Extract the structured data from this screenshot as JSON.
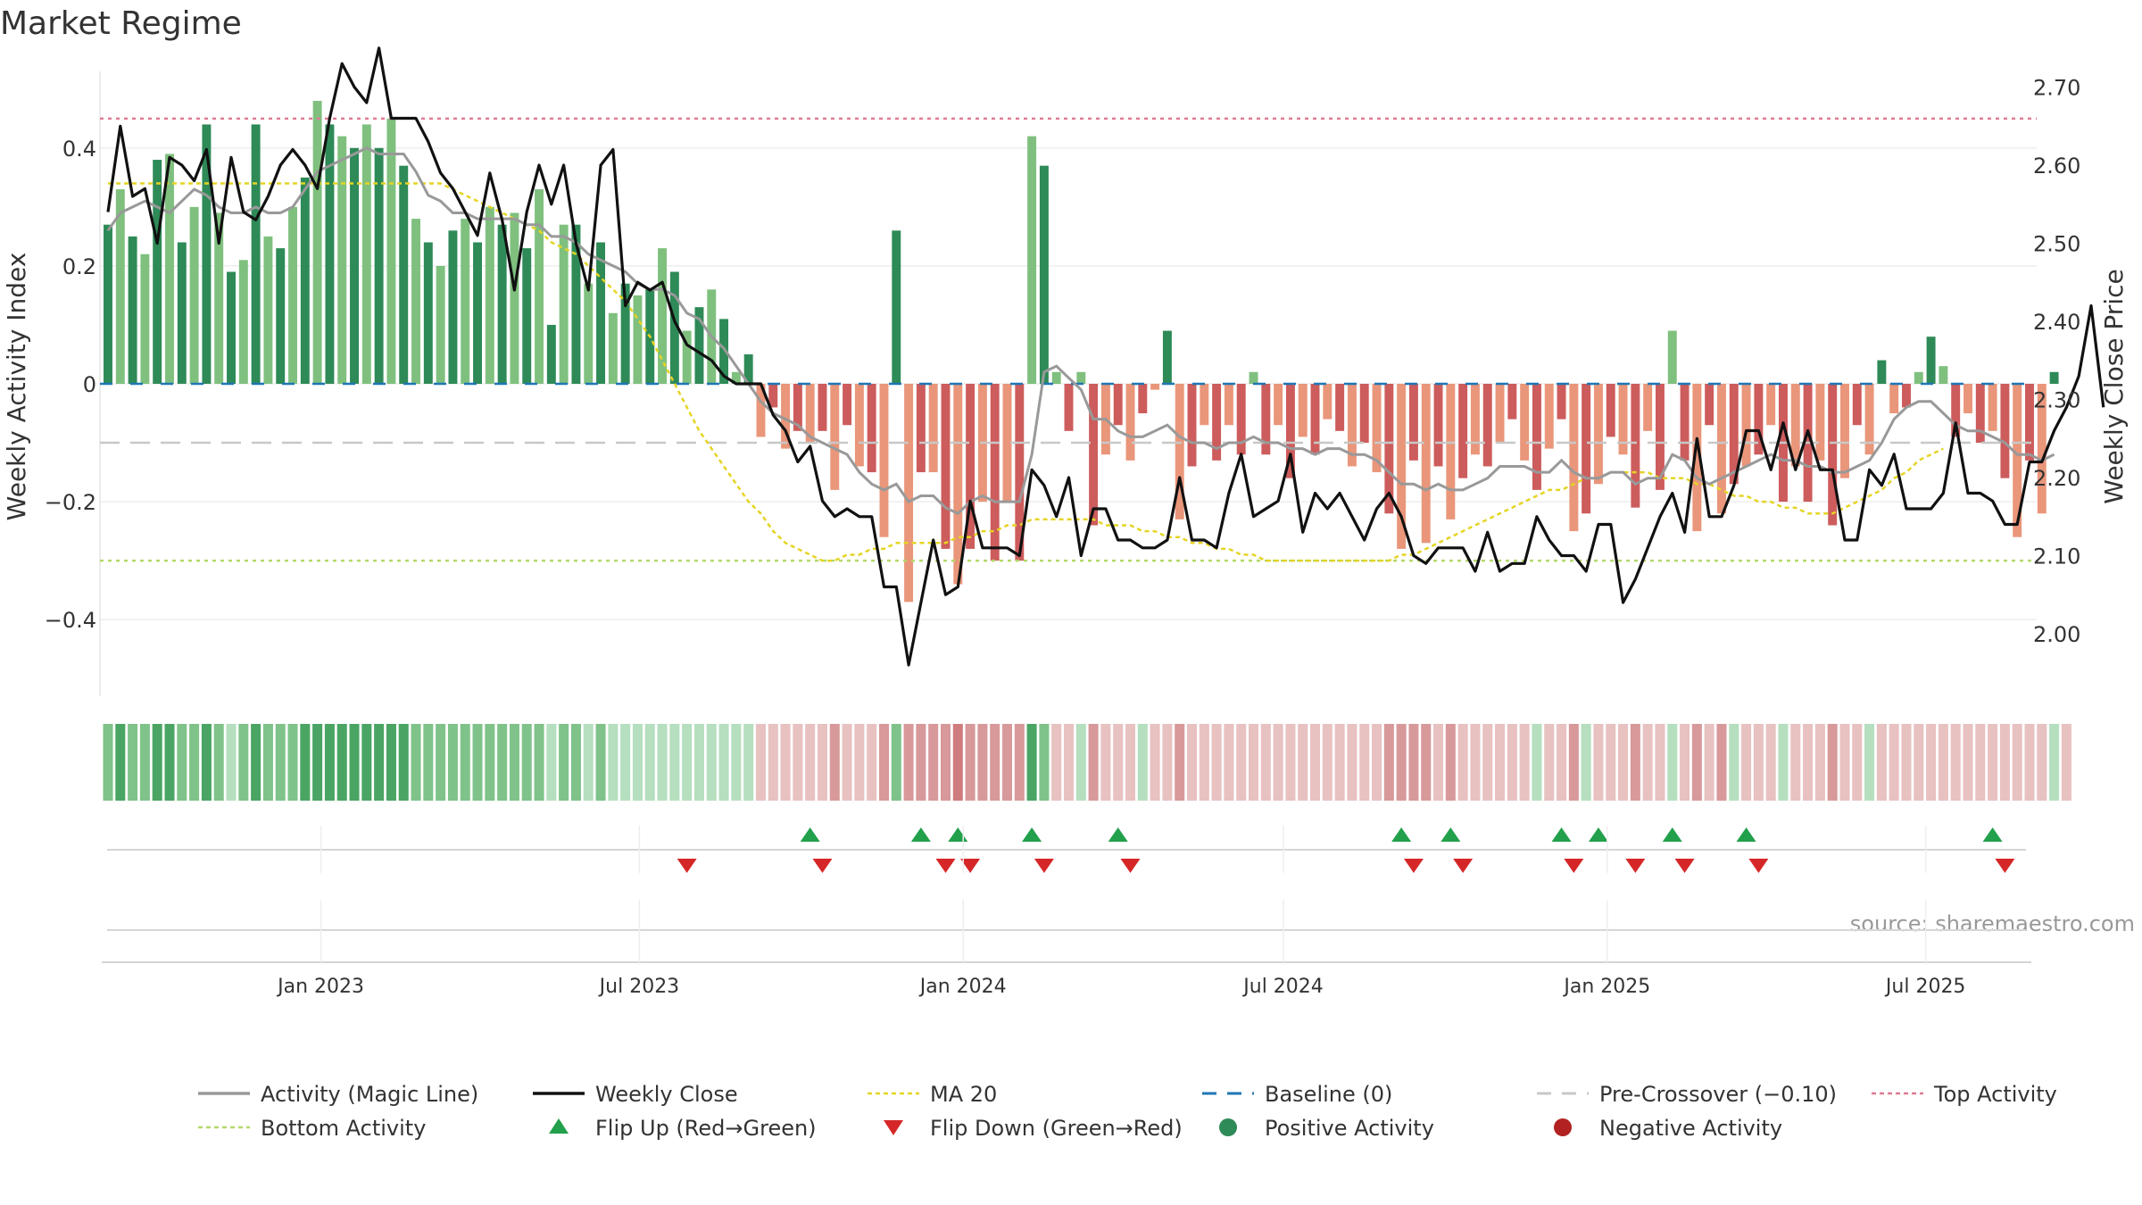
{
  "chart_data": {
    "type": "bar",
    "title": "Market Regime",
    "ylabel_left": "Weekly Activity Index",
    "ylabel_right": "Weekly Close Price",
    "source": "source: sharemaestro.com",
    "left_axis": {
      "ylim": [
        -0.53,
        0.53
      ],
      "ticks": [
        0.4,
        0.2,
        0,
        -0.2,
        -0.4
      ],
      "tick_labels": [
        "0.4",
        "0.2",
        "0",
        "−0.2",
        "−0.4"
      ]
    },
    "right_axis": {
      "ylim": [
        1.92,
        2.72
      ],
      "ticks": [
        2.7,
        2.6,
        2.5,
        2.4,
        2.3,
        2.2,
        2.1,
        2.0
      ],
      "tick_labels": [
        "2.70",
        "2.60",
        "2.50",
        "2.40",
        "2.30",
        "2.20",
        "2.10",
        "2.00"
      ]
    },
    "x_axis": {
      "start": "2022-09-02",
      "weeks": 157,
      "tick_dates": [
        "2023-01-01",
        "2023-07-01",
        "2024-01-01",
        "2024-07-01",
        "2025-01-01",
        "2025-07-01"
      ],
      "tick_labels": [
        "Jan 2023",
        "Jul 2023",
        "Jan 2024",
        "Jul 2024",
        "Jan 2025",
        "Jul 2025"
      ]
    },
    "reference_lines": {
      "baseline": 0,
      "pre_crossover": -0.1,
      "top_activity": 0.45,
      "bottom_activity": -0.3
    },
    "colors": {
      "pos_strong": "#2e8a57",
      "pos_weak": "#7fc07f",
      "neg_strong": "#cd5c5c",
      "neg_weak": "#e9967a",
      "magic": "#999999",
      "close": "#111111",
      "ma20": "#e5d424",
      "baseline": "#1f77b4",
      "pre_cross": "#c8c8c8",
      "top": "#e07b94",
      "bottom": "#b5d86a",
      "flip_up": "#22a04b",
      "flip_down": "#d62728"
    },
    "activity": [
      0.27,
      0.33,
      0.25,
      0.22,
      0.38,
      0.39,
      0.24,
      0.3,
      0.44,
      0.29,
      0.19,
      0.21,
      0.44,
      0.25,
      0.23,
      0.3,
      0.35,
      0.48,
      0.44,
      0.42,
      0.4,
      0.44,
      0.4,
      0.45,
      0.37,
      0.28,
      0.24,
      0.2,
      0.26,
      0.28,
      0.24,
      0.3,
      0.27,
      0.29,
      0.23,
      0.33,
      0.1,
      0.27,
      0.27,
      0.17,
      0.24,
      0.12,
      0.17,
      0.15,
      0.16,
      0.23,
      0.19,
      0.09,
      0.13,
      0.16,
      0.11,
      0.02,
      0.05,
      -0.09,
      -0.04,
      -0.11,
      -0.08,
      -0.1,
      -0.08,
      -0.18,
      -0.07,
      -0.14,
      -0.15,
      -0.26,
      0.26,
      -0.37,
      -0.15,
      -0.15,
      -0.28,
      -0.34,
      -0.28,
      -0.2,
      -0.3,
      -0.2,
      -0.3,
      0.42,
      0.37,
      0.02,
      -0.08,
      0.02,
      -0.24,
      -0.12,
      -0.07,
      -0.13,
      -0.05,
      -0.01,
      0.09,
      -0.23,
      -0.14,
      -0.07,
      -0.13,
      -0.07,
      -0.12,
      0.02,
      -0.12,
      -0.07,
      -0.16,
      -0.09,
      -0.12,
      -0.06,
      -0.08,
      -0.14,
      -0.1,
      -0.15,
      -0.22,
      -0.28,
      -0.13,
      -0.27,
      -0.14,
      -0.23,
      -0.16,
      -0.12,
      -0.14,
      -0.1,
      -0.06,
      -0.13,
      -0.18,
      -0.11,
      -0.06,
      -0.25,
      -0.22,
      -0.17,
      -0.09,
      -0.12,
      -0.21,
      -0.08,
      -0.18,
      0.09,
      -0.13,
      -0.25,
      -0.07,
      -0.22,
      -0.17,
      -0.14,
      -0.12,
      -0.07,
      -0.2,
      -0.14,
      -0.2,
      -0.13,
      -0.24,
      -0.16,
      -0.07,
      -0.12,
      0.04,
      -0.05,
      -0.04,
      0.02,
      0.08,
      0.03,
      -0.09,
      -0.05,
      -0.1,
      -0.08,
      -0.16,
      -0.26,
      -0.13,
      -0.22,
      0.02
    ],
    "magic_line": [
      0.26,
      0.29,
      0.3,
      0.31,
      0.3,
      0.29,
      0.31,
      0.33,
      0.32,
      0.3,
      0.29,
      0.29,
      0.3,
      0.29,
      0.29,
      0.3,
      0.33,
      0.36,
      0.37,
      0.38,
      0.39,
      0.4,
      0.39,
      0.39,
      0.39,
      0.36,
      0.32,
      0.31,
      0.29,
      0.29,
      0.28,
      0.28,
      0.28,
      0.28,
      0.27,
      0.27,
      0.25,
      0.25,
      0.24,
      0.22,
      0.21,
      0.2,
      0.19,
      0.17,
      0.16,
      0.16,
      0.15,
      0.12,
      0.11,
      0.08,
      0.06,
      0.03,
      0.0,
      -0.03,
      -0.05,
      -0.06,
      -0.07,
      -0.09,
      -0.1,
      -0.11,
      -0.12,
      -0.15,
      -0.17,
      -0.18,
      -0.17,
      -0.2,
      -0.19,
      -0.19,
      -0.21,
      -0.22,
      -0.2,
      -0.19,
      -0.2,
      -0.2,
      -0.2,
      -0.12,
      0.02,
      0.03,
      0.01,
      -0.01,
      -0.06,
      -0.06,
      -0.08,
      -0.09,
      -0.09,
      -0.08,
      -0.07,
      -0.09,
      -0.1,
      -0.1,
      -0.11,
      -0.1,
      -0.1,
      -0.09,
      -0.1,
      -0.1,
      -0.11,
      -0.11,
      -0.12,
      -0.11,
      -0.11,
      -0.12,
      -0.12,
      -0.13,
      -0.15,
      -0.17,
      -0.17,
      -0.18,
      -0.17,
      -0.18,
      -0.18,
      -0.17,
      -0.16,
      -0.14,
      -0.14,
      -0.14,
      -0.15,
      -0.15,
      -0.13,
      -0.15,
      -0.16,
      -0.16,
      -0.15,
      -0.15,
      -0.17,
      -0.16,
      -0.16,
      -0.12,
      -0.13,
      -0.16,
      -0.17,
      -0.16,
      -0.15,
      -0.14,
      -0.13,
      -0.12,
      -0.13,
      -0.13,
      -0.14,
      -0.14,
      -0.15,
      -0.15,
      -0.14,
      -0.13,
      -0.1,
      -0.06,
      -0.04,
      -0.03,
      -0.03,
      -0.05,
      -0.07,
      -0.08,
      -0.08,
      -0.09,
      -0.1,
      -0.12,
      -0.12,
      -0.13,
      -0.12
    ],
    "ma20": [
      0.34,
      0.34,
      0.34,
      0.34,
      0.34,
      0.34,
      0.34,
      0.34,
      0.34,
      0.34,
      0.34,
      0.34,
      0.34,
      0.34,
      0.34,
      0.34,
      0.34,
      0.34,
      0.34,
      0.34,
      0.34,
      0.34,
      0.34,
      0.34,
      0.34,
      0.34,
      0.34,
      0.34,
      0.33,
      0.32,
      0.31,
      0.3,
      0.29,
      0.28,
      0.27,
      0.26,
      0.24,
      0.23,
      0.22,
      0.2,
      0.18,
      0.16,
      0.14,
      0.11,
      0.08,
      0.04,
      0.0,
      -0.04,
      -0.08,
      -0.11,
      -0.14,
      -0.17,
      -0.2,
      -0.22,
      -0.25,
      -0.27,
      -0.28,
      -0.29,
      -0.3,
      -0.3,
      -0.29,
      -0.29,
      -0.28,
      -0.28,
      -0.27,
      -0.27,
      -0.27,
      -0.27,
      -0.27,
      -0.26,
      -0.26,
      -0.25,
      -0.25,
      -0.24,
      -0.24,
      -0.23,
      -0.23,
      -0.23,
      -0.23,
      -0.23,
      -0.23,
      -0.24,
      -0.24,
      -0.24,
      -0.25,
      -0.25,
      -0.26,
      -0.26,
      -0.27,
      -0.27,
      -0.28,
      -0.28,
      -0.29,
      -0.29,
      -0.3,
      -0.3,
      -0.3,
      -0.3,
      -0.3,
      -0.3,
      -0.3,
      -0.3,
      -0.3,
      -0.3,
      -0.3,
      -0.29,
      -0.29,
      -0.28,
      -0.27,
      -0.26,
      -0.25,
      -0.24,
      -0.23,
      -0.22,
      -0.21,
      -0.2,
      -0.19,
      -0.18,
      -0.18,
      -0.17,
      -0.16,
      -0.16,
      -0.15,
      -0.15,
      -0.15,
      -0.15,
      -0.16,
      -0.16,
      -0.16,
      -0.17,
      -0.17,
      -0.18,
      -0.19,
      -0.19,
      -0.2,
      -0.2,
      -0.21,
      -0.21,
      -0.22,
      -0.22,
      -0.22,
      -0.21,
      -0.2,
      -0.19,
      -0.18,
      -0.16,
      -0.15,
      -0.13,
      -0.12,
      -0.11
    ],
    "close": [
      2.54,
      2.65,
      2.56,
      2.57,
      2.5,
      2.61,
      2.6,
      2.58,
      2.62,
      2.5,
      2.61,
      2.54,
      2.53,
      2.56,
      2.6,
      2.62,
      2.6,
      2.57,
      2.66,
      2.73,
      2.7,
      2.68,
      2.75,
      2.66,
      2.66,
      2.66,
      2.63,
      2.59,
      2.57,
      2.54,
      2.51,
      2.59,
      2.53,
      2.44,
      2.54,
      2.6,
      2.55,
      2.6,
      2.5,
      2.44,
      2.6,
      2.62,
      2.42,
      2.45,
      2.44,
      2.45,
      2.4,
      2.37,
      2.36,
      2.35,
      2.33,
      2.32,
      2.32,
      2.32,
      2.28,
      2.26,
      2.22,
      2.24,
      2.17,
      2.15,
      2.16,
      2.15,
      2.15,
      2.06,
      2.06,
      1.96,
      2.04,
      2.12,
      2.05,
      2.06,
      2.17,
      2.11,
      2.11,
      2.11,
      2.1,
      2.21,
      2.19,
      2.15,
      2.2,
      2.1,
      2.16,
      2.16,
      2.12,
      2.12,
      2.11,
      2.11,
      2.12,
      2.2,
      2.12,
      2.12,
      2.11,
      2.18,
      2.23,
      2.15,
      2.16,
      2.17,
      2.23,
      2.13,
      2.18,
      2.16,
      2.18,
      2.15,
      2.12,
      2.16,
      2.18,
      2.15,
      2.1,
      2.09,
      2.11,
      2.11,
      2.11,
      2.08,
      2.13,
      2.08,
      2.09,
      2.09,
      2.15,
      2.12,
      2.1,
      2.1,
      2.08,
      2.14,
      2.14,
      2.04,
      2.07,
      2.11,
      2.15,
      2.18,
      2.13,
      2.25,
      2.15,
      2.15,
      2.19,
      2.26,
      2.26,
      2.21,
      2.27,
      2.21,
      2.26,
      2.21,
      2.21,
      2.12,
      2.12,
      2.21,
      2.19,
      2.23,
      2.16,
      2.16,
      2.16,
      2.18,
      2.27,
      2.18,
      2.18,
      2.17,
      2.14,
      2.14,
      2.22,
      2.22,
      2.26,
      2.29,
      2.33,
      2.42,
      2.29
    ],
    "regime_strip": [
      2,
      3,
      2,
      2,
      3,
      3,
      2,
      2,
      3,
      2,
      1,
      2,
      3,
      2,
      2,
      2,
      3,
      3,
      3,
      3,
      3,
      3,
      3,
      3,
      3,
      2,
      2,
      2,
      2,
      2,
      2,
      2,
      2,
      2,
      2,
      2,
      1,
      2,
      2,
      1,
      2,
      1,
      1,
      1,
      1,
      1,
      1,
      1,
      1,
      1,
      1,
      1,
      1,
      -1,
      -1,
      -1,
      -1,
      -1,
      -1,
      -2,
      -1,
      -1,
      -1,
      -2,
      2,
      -2,
      -2,
      -2,
      -2,
      -3,
      -2,
      -2,
      -2,
      -2,
      -2,
      3,
      2,
      -1,
      -1,
      1,
      -2,
      -1,
      -1,
      -1,
      1,
      -1,
      -1,
      -2,
      -1,
      -1,
      -1,
      -1,
      -1,
      -1,
      -1,
      -1,
      -1,
      -1,
      -1,
      -1,
      -1,
      -1,
      -1,
      -1,
      -2,
      -2,
      -2,
      -2,
      -1,
      -2,
      -1,
      -1,
      -1,
      -1,
      -1,
      -1,
      1,
      -1,
      -1,
      -2,
      1,
      -1,
      -1,
      -1,
      -2,
      -1,
      -1,
      1,
      -1,
      -2,
      -1,
      -2,
      1,
      -1,
      -1,
      -1,
      1,
      -1,
      -1,
      -1,
      -2,
      -1,
      -1,
      1,
      -1,
      -1,
      -1,
      -1,
      -1,
      -1,
      -1,
      -1,
      -1,
      -1,
      -1,
      -1,
      -1,
      -1,
      1,
      -1
    ],
    "flip_up_weeks": [
      57,
      66,
      69,
      75,
      82,
      105,
      109,
      118,
      121,
      127,
      133,
      153
    ],
    "flip_down_weeks": [
      47,
      58,
      68,
      70,
      76,
      83,
      106,
      110,
      119,
      124,
      128,
      134,
      154
    ],
    "legend": [
      {
        "label": "Activity (Magic Line)",
        "kind": "line",
        "color": "#999999"
      },
      {
        "label": "Weekly Close",
        "kind": "line",
        "color": "#111111"
      },
      {
        "label": "MA 20",
        "kind": "dotted",
        "color": "#e5d424"
      },
      {
        "label": "Baseline (0)",
        "kind": "dashed",
        "color": "#1f77b4"
      },
      {
        "label": "Pre-Crossover (−0.10)",
        "kind": "dashed",
        "color": "#c8c8c8"
      },
      {
        "label": "Top Activity",
        "kind": "dotted",
        "color": "#e07b94"
      },
      {
        "label": "Bottom Activity",
        "kind": "dotted",
        "color": "#b5d86a"
      },
      {
        "label": "Flip Up (Red→Green)",
        "kind": "tri-up",
        "color": "#22a04b"
      },
      {
        "label": "Flip Down (Green→Red)",
        "kind": "tri-down",
        "color": "#d62728"
      },
      {
        "label": "Positive Activity",
        "kind": "dot",
        "color": "#2e8a57"
      },
      {
        "label": "Negative Activity",
        "kind": "dot",
        "color": "#b22222"
      }
    ]
  }
}
